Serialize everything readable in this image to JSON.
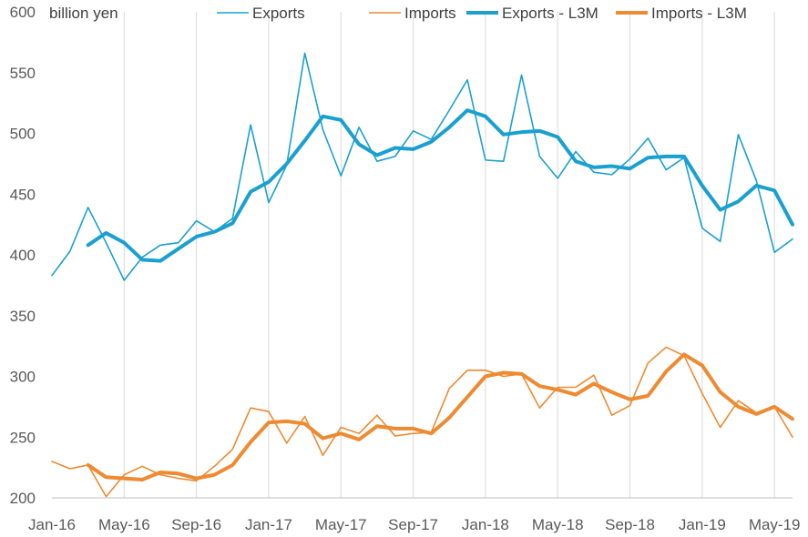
{
  "chart_data": {
    "type": "line",
    "title": "",
    "unit_label": "billion yen",
    "xlabel": "",
    "ylabel": "",
    "ylim": [
      200,
      600
    ],
    "yticks": [
      200,
      250,
      300,
      350,
      400,
      450,
      500,
      550,
      600
    ],
    "ytick_labels": [
      "200",
      "250",
      "300",
      "350",
      "400",
      "450",
      "500",
      "550",
      "600"
    ],
    "grid": "vertical lines at every 4 months",
    "legend_position": "top",
    "x": [
      "Jan-16",
      "Feb-16",
      "Mar-16",
      "Apr-16",
      "May-16",
      "Jun-16",
      "Jul-16",
      "Aug-16",
      "Sep-16",
      "Oct-16",
      "Nov-16",
      "Dec-16",
      "Jan-17",
      "Feb-17",
      "Mar-17",
      "Apr-17",
      "May-17",
      "Jun-17",
      "Jul-17",
      "Aug-17",
      "Sep-17",
      "Oct-17",
      "Nov-17",
      "Dec-17",
      "Jan-18",
      "Feb-18",
      "Mar-18",
      "Apr-18",
      "May-18",
      "Jun-18",
      "Jul-18",
      "Aug-18",
      "Sep-18",
      "Oct-18",
      "Nov-18",
      "Dec-18",
      "Jan-19",
      "Feb-19",
      "Mar-19",
      "Apr-19",
      "May-19",
      "Jun-19"
    ],
    "xtick_labels": [
      "Jan-16",
      "May-16",
      "Sep-16",
      "Jan-17",
      "May-17",
      "Sep-17",
      "Jan-18",
      "May-18",
      "Sep-18",
      "Jan-19",
      "May-19"
    ],
    "series": [
      {
        "name": "Exports",
        "color": "#1aa0d0",
        "width": 1.6,
        "values": [
          383,
          403,
          439,
          410,
          379,
          398,
          408,
          410,
          428,
          419,
          430,
          507,
          443,
          474,
          566,
          503,
          465,
          505,
          477,
          481,
          502,
          495,
          519,
          544,
          478,
          477,
          548,
          481,
          463,
          485,
          468,
          466,
          479,
          496,
          470,
          480,
          422,
          411,
          499,
          461,
          402,
          413
        ]
      },
      {
        "name": "Imports",
        "color": "#ee8a32",
        "width": 1.6,
        "values": [
          230,
          224,
          227,
          201,
          219,
          226,
          219,
          216,
          214,
          226,
          240,
          274,
          271,
          245,
          267,
          235,
          258,
          253,
          268,
          251,
          253,
          254,
          290,
          305,
          305,
          300,
          302,
          274,
          291,
          291,
          301,
          268,
          276,
          311,
          324,
          317,
          286,
          258,
          280,
          270,
          275,
          250
        ]
      },
      {
        "name": "Exports - L3M",
        "color": "#1aa0d0",
        "width": 4,
        "values": [
          null,
          null,
          408,
          418,
          410,
          396,
          395,
          405,
          415,
          419,
          426,
          452,
          460,
          475,
          494,
          514,
          511,
          491,
          482,
          488,
          487,
          493,
          505,
          519,
          514,
          499,
          501,
          502,
          497,
          477,
          472,
          473,
          471,
          480,
          481,
          481,
          457,
          437,
          444,
          457,
          453,
          425
        ]
      },
      {
        "name": "Imports - L3M",
        "color": "#ee8a32",
        "width": 4,
        "values": [
          null,
          null,
          227,
          217,
          216,
          215,
          221,
          220,
          216,
          219,
          227,
          246,
          262,
          263,
          261,
          249,
          253,
          248,
          259,
          257,
          257,
          253,
          266,
          283,
          300,
          303,
          302,
          292,
          289,
          285,
          294,
          287,
          281,
          284,
          304,
          318,
          309,
          287,
          275,
          269,
          275,
          265
        ]
      }
    ]
  }
}
